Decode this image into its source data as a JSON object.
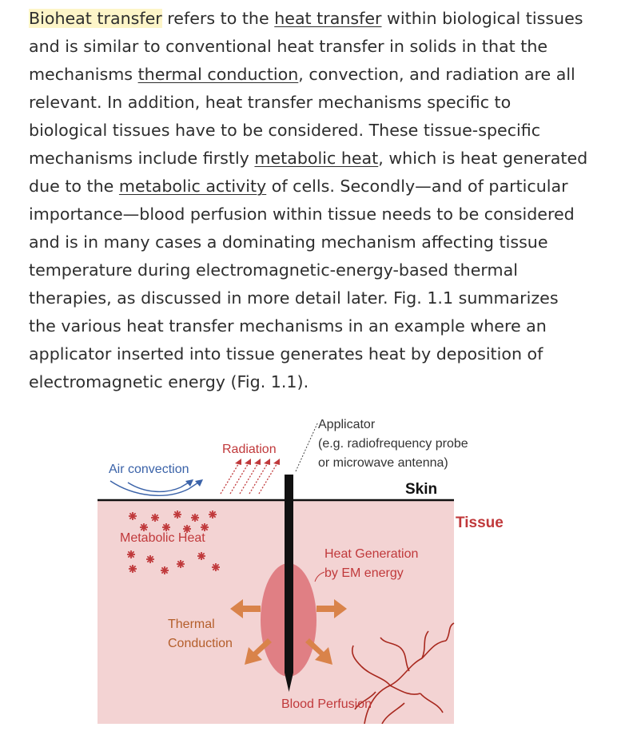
{
  "article": {
    "p1": "Bioheat transfer",
    "p2": " refers to the ",
    "p3": "heat transfer",
    "p4": " within biological tissues and is similar to conventional heat transfer in solids in that the mechanisms ",
    "p5": "thermal conduction",
    "p6": ", convection, and radiation are all relevant. In addition, heat transfer mechanisms specific to biological tissues have to be considered. These tissue-specific mechanisms include firstly ",
    "p7": "metabolic heat",
    "p8": ", which is heat generated due to the ",
    "p9": "metabolic activity",
    "p10": " of cells. Secondly—and of particular importance—blood perfusion within tissue needs to be considered and is in many cases a dominating mechanism affecting tissue temperature during electromagnetic-energy-based thermal therapies, as discussed in more detail later. Fig. 1.1 summarizes the various heat transfer mechanisms in an example where an applicator inserted into tissue generates heat by deposition of electromagnetic energy (Fig. 1.1)."
  },
  "figure": {
    "applicator_line1": "Applicator",
    "applicator_line2": "(e.g. radiofrequency probe",
    "applicator_line3": "or microwave antenna)",
    "radiation": "Radiation",
    "air_convection": "Air convection",
    "skin": "Skin",
    "tissue": "Tissue",
    "metabolic_heat": "Metabolic Heat",
    "heat_gen_line1": "Heat Generation",
    "heat_gen_line2": "by EM energy",
    "thermal_line1": "Thermal",
    "thermal_line2": "Conduction",
    "blood_perfusion": "Blood Perfusion",
    "colors": {
      "tissue_bg": "#f3d3d3",
      "heat_zone": "#e07f84",
      "arrow": "#d9834a",
      "label_red": "#c0393b",
      "label_blue": "#3a62a8",
      "label_brown": "#b45e2a",
      "vessel": "#a8281e"
    }
  }
}
